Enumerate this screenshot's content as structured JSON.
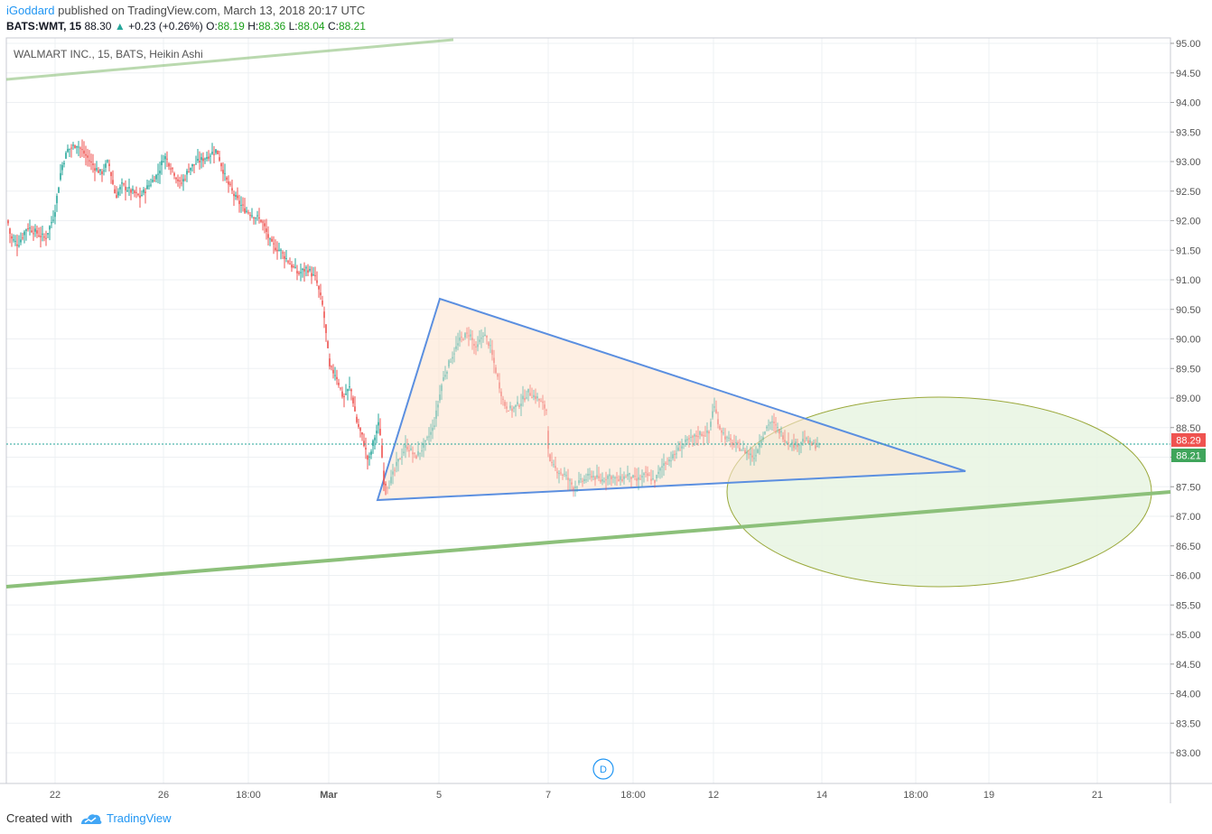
{
  "header": {
    "author": "iGoddard",
    "published_text": "published on TradingView.com, March 13, 2018 20:17 UTC",
    "symbol": "BATS:WMT, 15",
    "last": "88.30",
    "change": "+0.23 (+0.26%)",
    "o_label": "O:",
    "o_value": "88.19",
    "h_label": "H:",
    "h_value": "88.36",
    "l_label": "L:",
    "l_value": "88.04",
    "c_label": "C:",
    "c_value": "88.21"
  },
  "legend": "WALMART INC., 15, BATS, Heikin Ashi",
  "footer": {
    "created_with": "Created with",
    "brand": "TradingView"
  },
  "colors": {
    "up": "#26a69a",
    "down": "#ef5350",
    "triangle_line": "#5b8fe0",
    "triangle_fill": "#fde4d0",
    "trendline": "#8cc07a",
    "ellipse_fill": "#e8f4e2",
    "ellipse_stroke": "#9aa83a",
    "price_label_red": "#ef5350",
    "price_label_green": "#3fa55b"
  },
  "day_marker": "D",
  "price_labels": {
    "current": "88.29",
    "close": "88.21"
  },
  "chart_data": {
    "type": "candlestick",
    "style": "Heikin Ashi",
    "interval": "15",
    "x_ticks": [
      "22",
      "26",
      "18:00",
      "Mar",
      "5",
      "7",
      "18:00",
      "12",
      "14",
      "18:00",
      "19",
      "21"
    ],
    "y_ticks": [
      "95.00",
      "94.50",
      "94.00",
      "93.50",
      "93.00",
      "92.50",
      "92.00",
      "91.50",
      "91.00",
      "90.50",
      "90.00",
      "89.50",
      "89.00",
      "88.50",
      "88.00",
      "87.50",
      "87.00",
      "86.50",
      "86.00",
      "85.50",
      "85.00",
      "84.50",
      "84.00",
      "83.50",
      "83.00"
    ],
    "ylim": [
      82.5,
      95.0
    ],
    "price_path": [
      [
        0,
        92.8
      ],
      [
        5,
        92.3
      ],
      [
        12,
        91.7
      ],
      [
        20,
        91.6
      ],
      [
        30,
        91.9
      ],
      [
        40,
        91.8
      ],
      [
        50,
        91.7
      ],
      [
        60,
        92.1
      ],
      [
        68,
        92.9
      ],
      [
        75,
        93.2
      ],
      [
        85,
        93.3
      ],
      [
        95,
        93.1
      ],
      [
        105,
        92.9
      ],
      [
        112,
        92.8
      ],
      [
        120,
        93.0
      ],
      [
        128,
        92.4
      ],
      [
        135,
        92.6
      ],
      [
        145,
        92.5
      ],
      [
        155,
        92.4
      ],
      [
        165,
        92.6
      ],
      [
        175,
        92.8
      ],
      [
        182,
        93.1
      ],
      [
        190,
        92.9
      ],
      [
        200,
        92.6
      ],
      [
        210,
        92.9
      ],
      [
        220,
        93.0
      ],
      [
        230,
        93.1
      ],
      [
        240,
        93.2
      ],
      [
        250,
        92.7
      ],
      [
        260,
        92.4
      ],
      [
        270,
        92.2
      ],
      [
        280,
        92.1
      ],
      [
        290,
        92.0
      ],
      [
        300,
        91.6
      ],
      [
        310,
        91.5
      ],
      [
        320,
        91.3
      ],
      [
        330,
        91.1
      ],
      [
        340,
        91.2
      ],
      [
        350,
        91.0
      ],
      [
        358,
        90.5
      ],
      [
        365,
        89.5
      ],
      [
        372,
        89.4
      ],
      [
        380,
        89.0
      ],
      [
        388,
        89.2
      ],
      [
        395,
        88.6
      ],
      [
        402,
        88.3
      ],
      [
        408,
        87.9
      ],
      [
        414,
        88.3
      ],
      [
        420,
        88.6
      ],
      [
        425,
        87.6
      ],
      [
        430,
        87.5
      ],
      [
        440,
        87.9
      ],
      [
        450,
        88.2
      ],
      [
        460,
        88.0
      ],
      [
        470,
        88.2
      ],
      [
        480,
        88.5
      ],
      [
        490,
        89.3
      ],
      [
        500,
        89.7
      ],
      [
        510,
        90.0
      ],
      [
        520,
        90.1
      ],
      [
        527,
        89.8
      ],
      [
        535,
        90.1
      ],
      [
        542,
        89.9
      ],
      [
        550,
        89.4
      ],
      [
        558,
        88.9
      ],
      [
        566,
        88.8
      ],
      [
        575,
        88.9
      ],
      [
        585,
        89.1
      ],
      [
        595,
        89.0
      ],
      [
        605,
        88.8
      ],
      [
        608,
        87.9
      ],
      [
        615,
        87.8
      ],
      [
        625,
        87.7
      ],
      [
        635,
        87.5
      ],
      [
        645,
        87.6
      ],
      [
        655,
        87.7
      ],
      [
        665,
        87.6
      ],
      [
        675,
        87.7
      ],
      [
        685,
        87.6
      ],
      [
        695,
        87.7
      ],
      [
        705,
        87.6
      ],
      [
        715,
        87.7
      ],
      [
        725,
        87.6
      ],
      [
        735,
        87.9
      ],
      [
        745,
        88.0
      ],
      [
        755,
        88.2
      ],
      [
        765,
        88.3
      ],
      [
        775,
        88.4
      ],
      [
        785,
        88.4
      ],
      [
        790,
        88.9
      ],
      [
        797,
        88.5
      ],
      [
        805,
        88.3
      ],
      [
        815,
        88.2
      ],
      [
        825,
        88.1
      ],
      [
        835,
        88.0
      ],
      [
        845,
        88.4
      ],
      [
        852,
        88.6
      ],
      [
        860,
        88.5
      ],
      [
        870,
        88.3
      ],
      [
        880,
        88.2
      ],
      [
        890,
        88.3
      ],
      [
        900,
        88.2
      ],
      [
        908,
        88.21
      ]
    ]
  }
}
